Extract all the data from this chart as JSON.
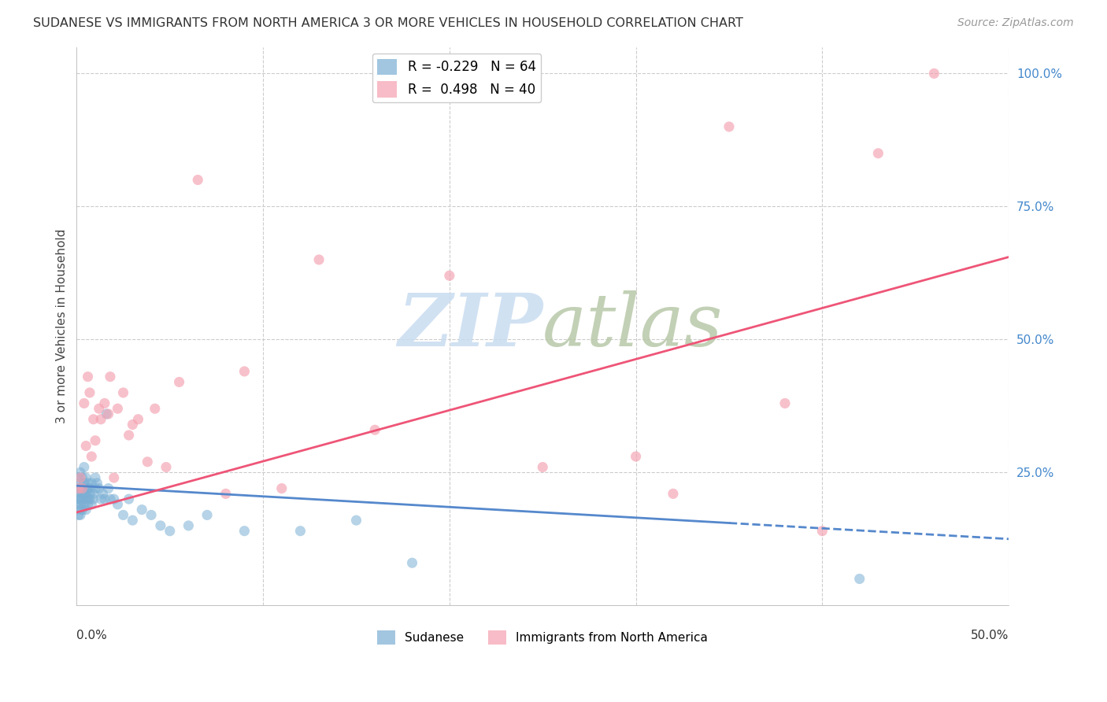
{
  "title": "SUDANESE VS IMMIGRANTS FROM NORTH AMERICA 3 OR MORE VEHICLES IN HOUSEHOLD CORRELATION CHART",
  "source": "Source: ZipAtlas.com",
  "ylabel": "3 or more Vehicles in Household",
  "legend_bottom": [
    "Sudanese",
    "Immigrants from North America"
  ],
  "blue_R": -0.229,
  "blue_N": 64,
  "pink_R": 0.498,
  "pink_N": 40,
  "blue_color": "#7BAFD4",
  "pink_color": "#F4A0B0",
  "blue_line_color": "#5588CC",
  "pink_line_color": "#EE5577",
  "watermark_color": "#C8DCF0",
  "xlim": [
    0.0,
    0.5
  ],
  "ylim": [
    0.0,
    1.05
  ],
  "blue_x": [
    0.001,
    0.001,
    0.001,
    0.001,
    0.001,
    0.001,
    0.002,
    0.002,
    0.002,
    0.002,
    0.002,
    0.002,
    0.002,
    0.003,
    0.003,
    0.003,
    0.003,
    0.003,
    0.004,
    0.004,
    0.004,
    0.004,
    0.005,
    0.005,
    0.005,
    0.005,
    0.005,
    0.006,
    0.006,
    0.006,
    0.006,
    0.007,
    0.007,
    0.007,
    0.008,
    0.008,
    0.009,
    0.009,
    0.01,
    0.01,
    0.011,
    0.012,
    0.013,
    0.014,
    0.015,
    0.016,
    0.017,
    0.018,
    0.02,
    0.022,
    0.025,
    0.028,
    0.03,
    0.035,
    0.04,
    0.045,
    0.05,
    0.06,
    0.07,
    0.09,
    0.12,
    0.15,
    0.18,
    0.42
  ],
  "blue_y": [
    0.22,
    0.2,
    0.19,
    0.24,
    0.21,
    0.17,
    0.23,
    0.2,
    0.18,
    0.25,
    0.22,
    0.19,
    0.17,
    0.22,
    0.24,
    0.2,
    0.18,
    0.21,
    0.23,
    0.21,
    0.19,
    0.26,
    0.22,
    0.2,
    0.18,
    0.24,
    0.21,
    0.2,
    0.22,
    0.19,
    0.23,
    0.21,
    0.22,
    0.2,
    0.19,
    0.23,
    0.21,
    0.2,
    0.22,
    0.24,
    0.23,
    0.22,
    0.2,
    0.21,
    0.2,
    0.36,
    0.22,
    0.2,
    0.2,
    0.19,
    0.17,
    0.2,
    0.16,
    0.18,
    0.17,
    0.15,
    0.14,
    0.15,
    0.17,
    0.14,
    0.14,
    0.16,
    0.08,
    0.05
  ],
  "pink_x": [
    0.001,
    0.002,
    0.003,
    0.004,
    0.005,
    0.006,
    0.007,
    0.008,
    0.009,
    0.01,
    0.012,
    0.013,
    0.015,
    0.017,
    0.018,
    0.02,
    0.022,
    0.025,
    0.028,
    0.03,
    0.033,
    0.038,
    0.042,
    0.048,
    0.055,
    0.065,
    0.08,
    0.09,
    0.11,
    0.13,
    0.16,
    0.2,
    0.25,
    0.3,
    0.32,
    0.35,
    0.38,
    0.4,
    0.43,
    0.46
  ],
  "pink_y": [
    0.22,
    0.24,
    0.22,
    0.38,
    0.3,
    0.43,
    0.4,
    0.28,
    0.35,
    0.31,
    0.37,
    0.35,
    0.38,
    0.36,
    0.43,
    0.24,
    0.37,
    0.4,
    0.32,
    0.34,
    0.35,
    0.27,
    0.37,
    0.26,
    0.42,
    0.8,
    0.21,
    0.44,
    0.22,
    0.65,
    0.33,
    0.62,
    0.26,
    0.28,
    0.21,
    0.9,
    0.38,
    0.14,
    0.85,
    1.0
  ],
  "blue_line_start_x": 0.0,
  "blue_line_solid_end_x": 0.35,
  "blue_line_end_x": 0.5,
  "pink_line_start_x": 0.0,
  "pink_line_end_x": 0.5
}
